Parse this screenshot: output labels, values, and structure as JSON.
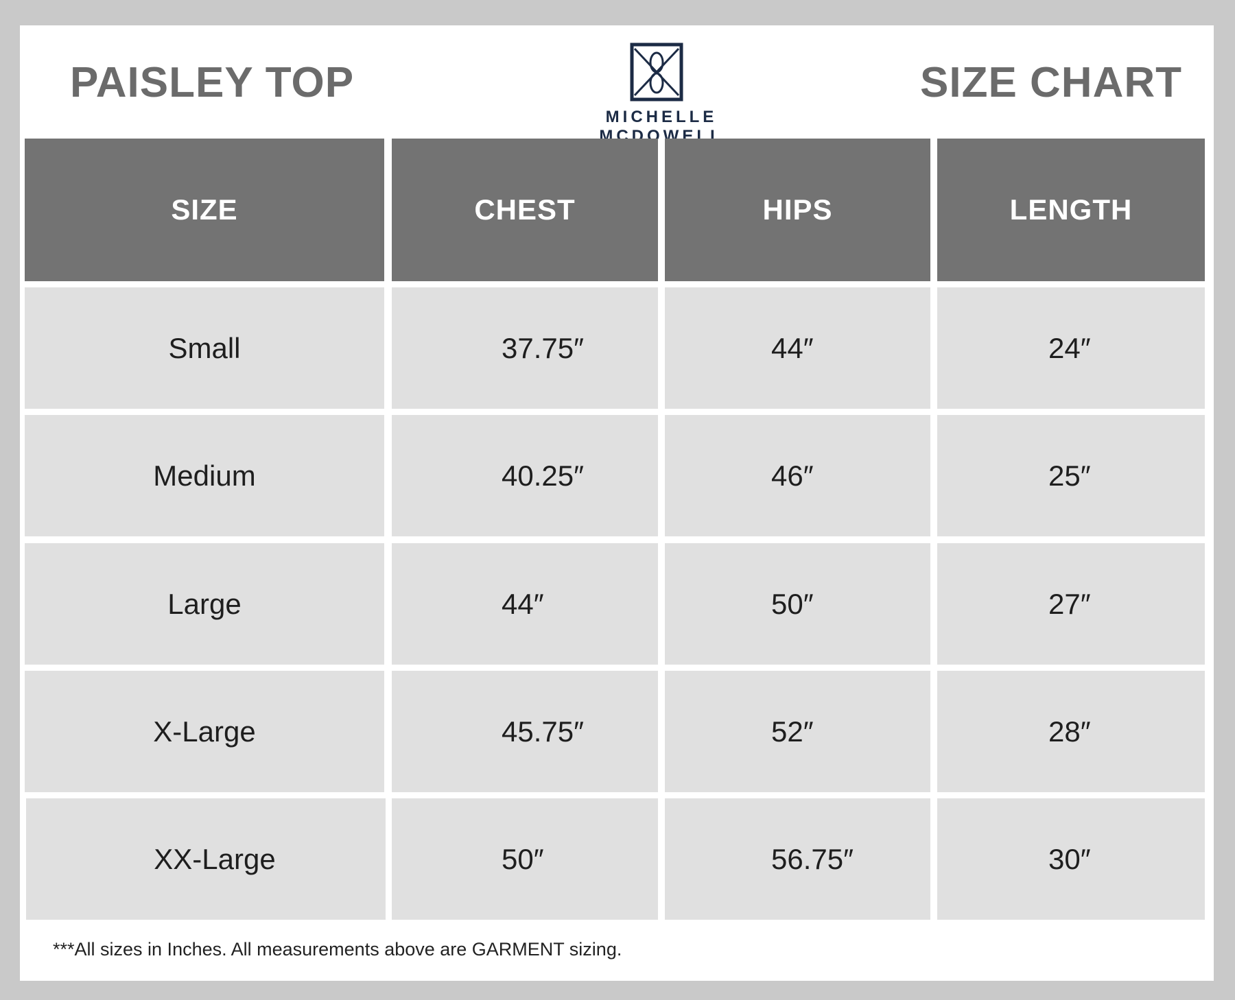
{
  "header": {
    "product_title": "PAISLEY TOP",
    "chart_title": "SIZE CHART",
    "brand_name": "MICHELLE MCDOWELL"
  },
  "table": {
    "columns": [
      "SIZE",
      "CHEST",
      "HIPS",
      "LENGTH"
    ],
    "rows": [
      {
        "size": "Small",
        "chest": "37.75″",
        "hips": "44″",
        "length": "24″"
      },
      {
        "size": "Medium",
        "chest": "40.25″",
        "hips": "46″",
        "length": "25″"
      },
      {
        "size": "Large",
        "chest": "44″",
        "hips": "50″",
        "length": "27″"
      },
      {
        "size": "X-Large",
        "chest": "45.75″",
        "hips": "52″",
        "length": "28″"
      },
      {
        "size": "XX-Large",
        "chest": "50″",
        "hips": "56.75″",
        "length": "30″"
      }
    ]
  },
  "footnote": "***All sizes in Inches. All measurements above are GARMENT sizing.",
  "colors": {
    "page_bg": "#c9c9c9",
    "header_cell_bg": "#737373",
    "body_cell_bg": "#e0e0e0",
    "title_text": "#6b6b6b",
    "brand_navy": "#1c2b45"
  },
  "icons": {
    "logo": "crossed-monogram-logo-icon"
  }
}
